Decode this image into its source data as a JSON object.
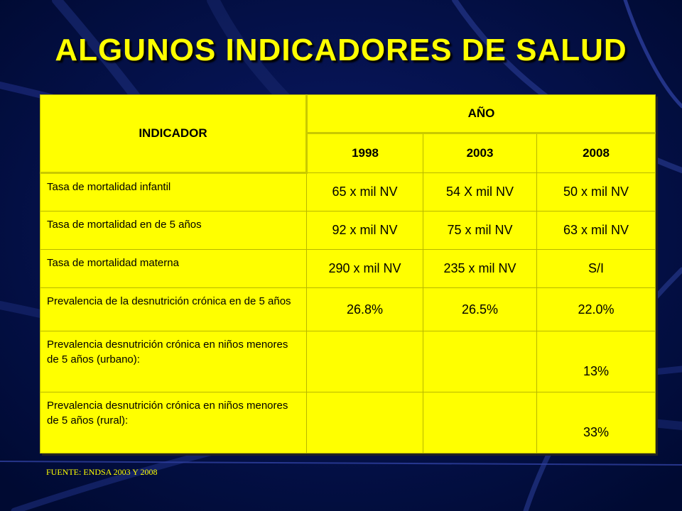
{
  "colors": {
    "background": "#000a3a",
    "title": "#ffff00",
    "table_fill": "#ffff00",
    "table_text": "#000000",
    "source_text": "#ffff00",
    "streaks": "#2a3a8c"
  },
  "title": "ALGUNOS INDICADORES DE SALUD",
  "table": {
    "header_indicator": "INDICADOR",
    "header_year_group": "AÑO",
    "years": [
      "1998",
      "2003",
      "2008"
    ],
    "rows": [
      {
        "indicator": "Tasa de mortalidad infantil",
        "values": [
          "65 x mil NV",
          "54 X mil NV",
          "50 x mil NV"
        ]
      },
      {
        "indicator": "Tasa de mortalidad en  de 5 años",
        "values": [
          "92 x mil NV",
          "75 x mil NV",
          "63 x mil NV"
        ]
      },
      {
        "indicator": "Tasa de mortalidad materna",
        "values": [
          "290 x mil NV",
          "235 x mil NV",
          "S/I"
        ]
      },
      {
        "indicator": "Prevalencia de la desnutrición crónica en  de 5 años",
        "values": [
          "26.8%",
          "26.5%",
          "22.0%"
        ]
      },
      {
        "indicator": "Prevalencia desnutrición crónica en niños menores de 5 años (urbano):",
        "values": [
          "",
          "",
          "13%"
        ]
      },
      {
        "indicator": "Prevalencia desnutrición crónica en niños menores de 5 años (rural):",
        "values": [
          "",
          "",
          "33%"
        ]
      }
    ]
  },
  "source": "FUENTE:  ENDSA  2003 Y 2008"
}
